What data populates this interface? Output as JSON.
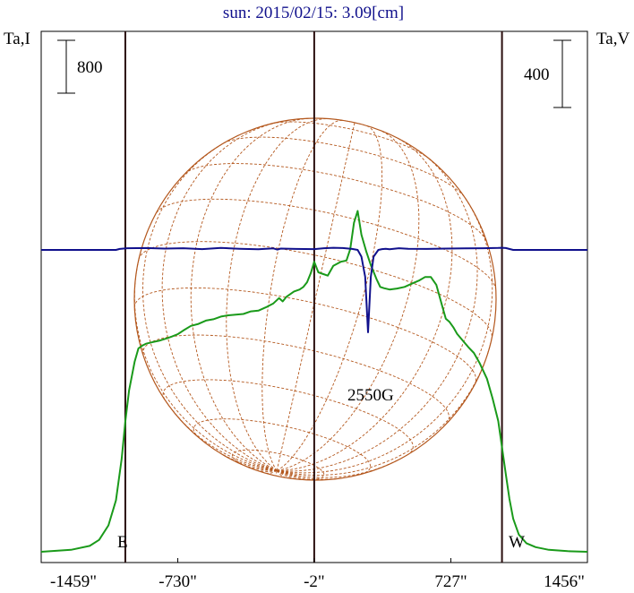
{
  "chart_data": {
    "type": "line",
    "title": "sun: 2015/02/15: 3.09[cm]",
    "left_axis_label": "Ta,I",
    "right_axis_label": "Ta,V",
    "x_tick_labels": [
      "-1459\"",
      "-730\"",
      "-2\"",
      "727\"",
      "1456\""
    ],
    "x_tick_values": [
      -1459,
      -730,
      -2,
      727,
      1456
    ],
    "xlim": [
      -1459,
      1456
    ],
    "grid": false,
    "limb_labels": {
      "east": "E",
      "west": "W"
    },
    "limb_positions": [
      -1010,
      1000
    ],
    "scale_bars": [
      {
        "axis": "left",
        "label": "800",
        "value": 800
      },
      {
        "axis": "right",
        "label": "400",
        "value": 400
      }
    ],
    "annotation": "2550G",
    "series": [
      {
        "axis": "left",
        "color": "#1a9a1a",
        "x": [
          -1459,
          -1300,
          -1200,
          -1150,
          -1100,
          -1060,
          -1030,
          -1010,
          -990,
          -960,
          -940,
          -920,
          -900,
          -870,
          -830,
          -790,
          -760,
          -730,
          -700,
          -660,
          -620,
          -580,
          -540,
          -500,
          -460,
          -420,
          -380,
          -340,
          -300,
          -260,
          -220,
          -190,
          -170,
          -150,
          -110,
          -80,
          -60,
          -40,
          -20,
          -2,
          20,
          40,
          70,
          100,
          140,
          170,
          190,
          210,
          230,
          250,
          275,
          300,
          330,
          350,
          370,
          400,
          440,
          480,
          520,
          560,
          590,
          620,
          650,
          680,
          700,
          720,
          740,
          760,
          790,
          820,
          850,
          880,
          920,
          950,
          980,
          1000,
          1020,
          1040,
          1060,
          1090,
          1130,
          1180,
          1250,
          1350,
          1456
        ],
        "values": [
          0,
          30,
          90,
          180,
          400,
          780,
          1400,
          1980,
          2440,
          2880,
          3080,
          3120,
          3150,
          3170,
          3195,
          3230,
          3260,
          3295,
          3350,
          3420,
          3450,
          3500,
          3520,
          3560,
          3580,
          3590,
          3600,
          3640,
          3650,
          3700,
          3760,
          3840,
          3790,
          3860,
          3940,
          3970,
          4010,
          4080,
          4220,
          4390,
          4230,
          4210,
          4180,
          4330,
          4390,
          4410,
          4580,
          4980,
          5160,
          4800,
          4550,
          4340,
          4130,
          4010,
          3990,
          3970,
          3985,
          4010,
          4060,
          4110,
          4160,
          4160,
          4040,
          3730,
          3530,
          3480,
          3400,
          3300,
          3200,
          3100,
          3010,
          2860,
          2620,
          2320,
          1980,
          1580,
          1180,
          800,
          500,
          260,
          130,
          70,
          30,
          10,
          0
        ]
      },
      {
        "axis": "right",
        "color": "#10108c",
        "x": [
          -1459,
          -1060,
          -1040,
          -1000,
          -900,
          -800,
          -700,
          -600,
          -500,
          -400,
          -300,
          -220,
          -200,
          -180,
          -100,
          -2,
          50,
          100,
          150,
          200,
          230,
          250,
          270,
          285,
          300,
          315,
          340,
          360,
          380,
          400,
          450,
          500,
          600,
          700,
          800,
          900,
          980,
          1000,
          1020,
          1060,
          1456
        ],
        "values": [
          0,
          0,
          6,
          10,
          11,
          8,
          10,
          5,
          12,
          7,
          4,
          9,
          2,
          8,
          6,
          5,
          10,
          13,
          11,
          6,
          0,
          -40,
          -160,
          -490,
          -160,
          -40,
          0,
          5,
          7,
          4,
          10,
          7,
          6,
          8,
          9,
          10,
          12,
          13,
          11,
          0,
          0
        ]
      }
    ]
  }
}
